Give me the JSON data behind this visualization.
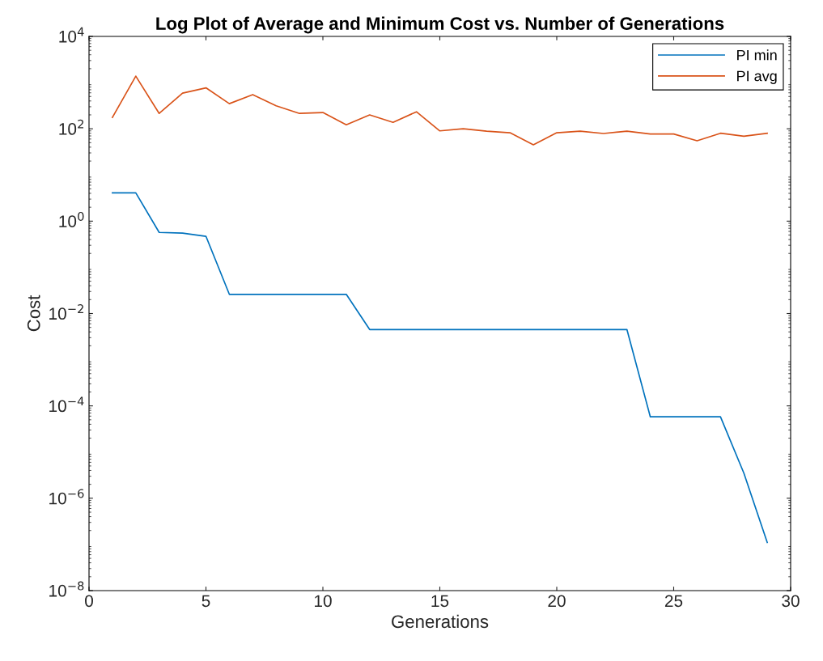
{
  "chart_data": {
    "type": "line",
    "title": "Log Plot of Average and Minimum Cost vs. Number of Generations",
    "xlabel": "Generations",
    "ylabel": "Cost",
    "x": [
      1,
      2,
      3,
      4,
      5,
      6,
      7,
      8,
      9,
      10,
      11,
      12,
      13,
      14,
      15,
      16,
      17,
      18,
      19,
      20,
      21,
      22,
      23,
      24,
      25,
      26,
      27,
      28,
      29
    ],
    "series": [
      {
        "name": "PI min",
        "color": "#0072bd",
        "values": [
          4.1,
          4.1,
          0.57,
          0.55,
          0.47,
          0.026,
          0.026,
          0.026,
          0.026,
          0.026,
          0.026,
          0.0045,
          0.0045,
          0.0045,
          0.0045,
          0.0045,
          0.0045,
          0.0045,
          0.0045,
          0.0045,
          0.0045,
          0.0045,
          0.0045,
          5.8e-05,
          5.8e-05,
          5.8e-05,
          5.8e-05,
          3.5e-06,
          1.1e-07
        ]
      },
      {
        "name": "PI avg",
        "color": "#d95319",
        "values": [
          176,
          1380,
          215,
          590,
          770,
          350,
          550,
          315,
          215,
          225,
          122,
          200,
          138,
          233,
          90,
          100,
          89,
          82,
          45,
          82,
          89,
          79,
          89,
          77,
          77,
          55,
          80,
          69,
          80
        ]
      }
    ],
    "log": "y",
    "xlim": [
      0,
      30
    ],
    "xticks": [
      0,
      5,
      10,
      15,
      20,
      25,
      30
    ],
    "ylim": [
      1e-08,
      10000
    ],
    "yticks": [
      {
        "value": 1e-08,
        "label": "10$^{−8}$"
      },
      {
        "value": 1e-06,
        "label": "10$^{−6}$"
      },
      {
        "value": 0.0001,
        "label": "10$^{−4}$"
      },
      {
        "value": 0.01,
        "label": "10$^{−2}$"
      },
      {
        "value": 1,
        "label": "10$^{0}$"
      },
      {
        "value": 100,
        "label": "10$^{2}$"
      },
      {
        "value": 10000,
        "label": "10$^{4}$"
      }
    ],
    "grid": false,
    "legend": "top right",
    "marker": "none",
    "line_style": "solid"
  }
}
